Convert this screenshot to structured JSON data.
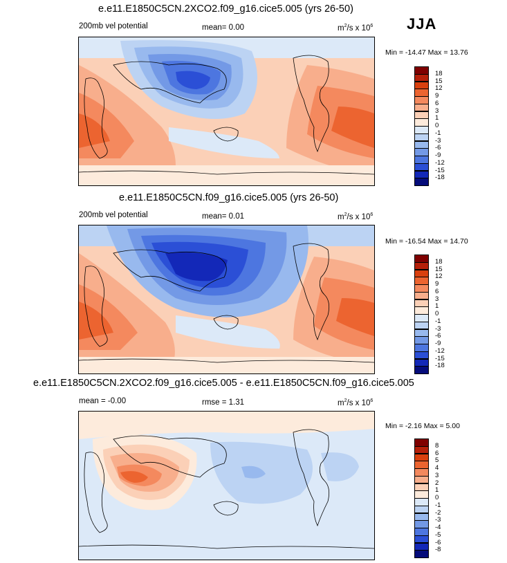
{
  "season": "JJA",
  "panels": [
    {
      "title": "e.e11.E1850C5CN.2XCO2.f09_g16.cice5.005 (yrs 26-50)",
      "variable": "200mb vel potential",
      "stat": "mean=   0.00",
      "units_base": "m",
      "units_sup1": "2",
      "units_mid": "/s x 10",
      "units_sup2": "6",
      "minmax": "Min = -14.47 Max =  13.76",
      "levels": [
        "18",
        "15",
        "12",
        "9",
        "6",
        "3",
        "1",
        "0",
        "-1",
        "-3",
        "-6",
        "-9",
        "-12",
        "-15",
        "-18"
      ],
      "colors": [
        "#7f0000",
        "#b5200a",
        "#d9400e",
        "#ec6430",
        "#f4895e",
        "#f8ae8c",
        "#fbd0b7",
        "#fdebdc",
        "#dce9f8",
        "#bcd3f3",
        "#98b9ee",
        "#7399e6",
        "#4d76e0",
        "#2b4fd6",
        "#1328b8",
        "#050c7a"
      ]
    },
    {
      "title": "e.e11.E1850C5CN.f09_g16.cice5.005 (yrs 26-50)",
      "variable": "200mb vel potential",
      "stat": "mean=   0.01",
      "units_base": "m",
      "units_sup1": "2",
      "units_mid": "/s x 10",
      "units_sup2": "6",
      "minmax": "Min = -16.54 Max =  14.70",
      "levels": [
        "18",
        "15",
        "12",
        "9",
        "6",
        "3",
        "1",
        "0",
        "-1",
        "-3",
        "-6",
        "-9",
        "-12",
        "-15",
        "-18"
      ],
      "colors": [
        "#7f0000",
        "#b5200a",
        "#d9400e",
        "#ec6430",
        "#f4895e",
        "#f8ae8c",
        "#fbd0b7",
        "#fdebdc",
        "#dce9f8",
        "#bcd3f3",
        "#98b9ee",
        "#7399e6",
        "#4d76e0",
        "#2b4fd6",
        "#1328b8",
        "#050c7a"
      ]
    },
    {
      "title": "e.e11.E1850C5CN.2XCO2.f09_g16.cice5.005 - e.e11.E1850C5CN.f09_g16.cice5.005",
      "mean_text": "mean =  -0.00",
      "stat": "rmse =   1.31",
      "units_base": "m",
      "units_sup1": "2",
      "units_mid": "/s x 10",
      "units_sup2": "6",
      "minmax": "Min =  -2.16 Max =   5.00",
      "levels": [
        "8",
        "6",
        "5",
        "4",
        "3",
        "2",
        "1",
        "0",
        "-1",
        "-2",
        "-3",
        "-4",
        "-5",
        "-6",
        "-8"
      ],
      "colors": [
        "#7f0000",
        "#b5200a",
        "#d9400e",
        "#ec6430",
        "#f4895e",
        "#f8ae8c",
        "#fbd0b7",
        "#fdebdc",
        "#dce9f8",
        "#bcd3f3",
        "#98b9ee",
        "#7399e6",
        "#4d76e0",
        "#2b4fd6",
        "#1328b8",
        "#050c7a"
      ]
    }
  ]
}
